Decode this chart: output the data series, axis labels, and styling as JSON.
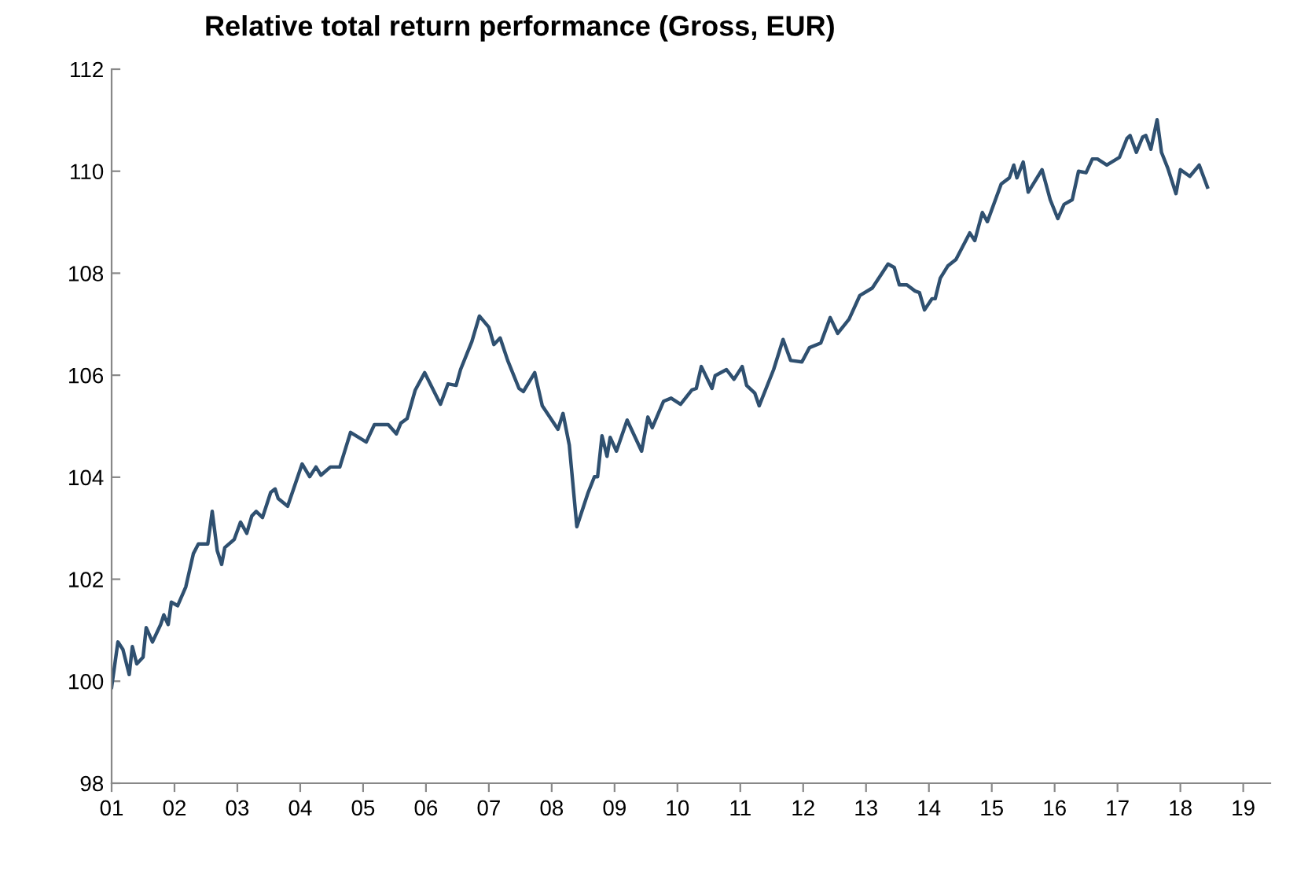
{
  "chart_data": {
    "type": "line",
    "title": "Relative total return performance (Gross, EUR)",
    "x": [
      1.0,
      1.1,
      1.18,
      1.28,
      1.33,
      1.4,
      1.5,
      1.55,
      1.65,
      1.78,
      1.83,
      1.9,
      1.95,
      2.05,
      2.18,
      2.3,
      2.38,
      2.53,
      2.6,
      2.68,
      2.75,
      2.8,
      2.95,
      3.05,
      3.15,
      3.23,
      3.3,
      3.4,
      3.53,
      3.6,
      3.65,
      3.8,
      4.03,
      4.15,
      4.25,
      4.33,
      4.48,
      4.63,
      4.8,
      5.05,
      5.18,
      5.4,
      5.53,
      5.6,
      5.7,
      5.83,
      5.98,
      6.23,
      6.35,
      6.48,
      6.55,
      6.73,
      6.85,
      7.0,
      7.08,
      7.18,
      7.3,
      7.48,
      7.55,
      7.73,
      7.85,
      8.1,
      8.18,
      8.28,
      8.4,
      8.58,
      8.68,
      8.73,
      8.8,
      8.88,
      8.93,
      9.03,
      9.2,
      9.43,
      9.53,
      9.6,
      9.78,
      9.9,
      10.05,
      10.23,
      10.3,
      10.38,
      10.55,
      10.6,
      10.78,
      10.9,
      11.03,
      11.1,
      11.23,
      11.3,
      11.53,
      11.68,
      11.8,
      11.98,
      12.1,
      12.28,
      12.43,
      12.55,
      12.73,
      12.9,
      13.1,
      13.35,
      13.45,
      13.53,
      13.65,
      13.78,
      13.85,
      13.93,
      14.05,
      14.1,
      14.18,
      14.3,
      14.43,
      14.65,
      14.73,
      14.85,
      14.93,
      15.15,
      15.28,
      15.35,
      15.4,
      15.5,
      15.58,
      15.8,
      15.93,
      16.05,
      16.15,
      16.28,
      16.38,
      16.5,
      16.6,
      16.68,
      16.83,
      17.03,
      17.15,
      17.2,
      17.3,
      17.4,
      17.45,
      17.53,
      17.63,
      17.7,
      17.8,
      17.93,
      18.0,
      18.15,
      18.3,
      18.43
    ],
    "series": [
      {
        "color": "#2f5070",
        "values": [
          99.88,
          100.77,
          100.62,
          100.13,
          100.68,
          100.34,
          100.47,
          101.05,
          100.77,
          101.11,
          101.3,
          101.11,
          101.55,
          101.48,
          101.85,
          102.5,
          102.69,
          102.69,
          103.33,
          102.56,
          102.29,
          102.62,
          102.78,
          103.12,
          102.9,
          103.24,
          103.33,
          103.21,
          103.7,
          103.77,
          103.58,
          103.43,
          104.26,
          104.01,
          104.2,
          104.04,
          104.2,
          104.2,
          104.88,
          104.69,
          105.03,
          105.03,
          104.85,
          105.06,
          105.15,
          105.71,
          106.05,
          105.43,
          105.83,
          105.8,
          106.11,
          106.66,
          107.16,
          106.94,
          106.6,
          106.73,
          106.29,
          105.74,
          105.68,
          106.05,
          105.4,
          104.94,
          105.25,
          104.63,
          103.03,
          103.7,
          104.01,
          104.01,
          104.81,
          104.41,
          104.78,
          104.51,
          105.12,
          104.51,
          105.18,
          104.97,
          105.49,
          105.55,
          105.43,
          105.71,
          105.74,
          106.17,
          105.74,
          105.99,
          106.11,
          105.92,
          106.17,
          105.8,
          105.65,
          105.4,
          106.11,
          106.7,
          106.29,
          106.26,
          106.54,
          106.63,
          107.13,
          106.82,
          107.1,
          107.56,
          107.71,
          108.18,
          108.11,
          107.77,
          107.77,
          107.65,
          107.62,
          107.28,
          107.5,
          107.5,
          107.9,
          108.14,
          108.27,
          108.79,
          108.64,
          109.19,
          109.01,
          109.75,
          109.87,
          110.12,
          109.87,
          110.18,
          109.59,
          110.03,
          109.44,
          109.07,
          109.35,
          109.44,
          110.0,
          109.97,
          110.24,
          110.24,
          110.12,
          110.27,
          110.64,
          110.7,
          110.37,
          110.67,
          110.7,
          110.43,
          111.01,
          110.37,
          110.06,
          109.56,
          110.03,
          109.9,
          110.12,
          109.69
        ]
      }
    ],
    "xlim": [
      1,
      19.43
    ],
    "ylim": [
      98,
      112
    ],
    "xticks": [
      {
        "value": 1,
        "label": "01"
      },
      {
        "value": 2,
        "label": "02"
      },
      {
        "value": 3,
        "label": "03"
      },
      {
        "value": 4,
        "label": "04"
      },
      {
        "value": 5,
        "label": "05"
      },
      {
        "value": 6,
        "label": "06"
      },
      {
        "value": 7,
        "label": "07"
      },
      {
        "value": 8,
        "label": "08"
      },
      {
        "value": 9,
        "label": "09"
      },
      {
        "value": 10,
        "label": "10"
      },
      {
        "value": 11,
        "label": "11"
      },
      {
        "value": 12,
        "label": "12"
      },
      {
        "value": 13,
        "label": "13"
      },
      {
        "value": 14,
        "label": "14"
      },
      {
        "value": 15,
        "label": "15"
      },
      {
        "value": 16,
        "label": "16"
      },
      {
        "value": 17,
        "label": "17"
      },
      {
        "value": 18,
        "label": "18"
      },
      {
        "value": 19,
        "label": "19"
      }
    ],
    "yticks": [
      98,
      100,
      102,
      104,
      106,
      108,
      110,
      112
    ],
    "marker": "none",
    "line_style": "solid"
  }
}
